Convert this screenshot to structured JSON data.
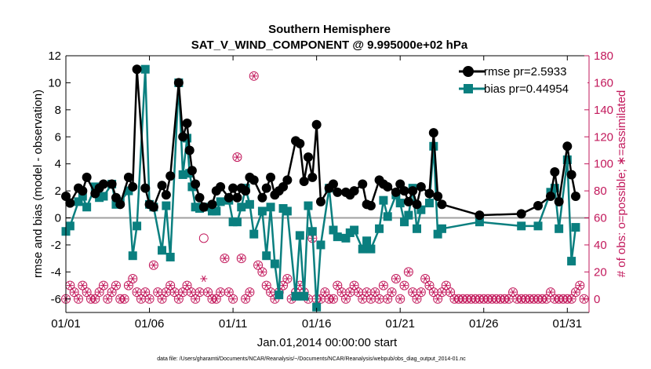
{
  "chart_data": {
    "type": "line",
    "title": "Southern Hemisphere",
    "subtitle": "SAT_V_WIND_COMPONENT @ 9.995000e+02 hPa",
    "xlabel": "Jan.01,2014 00:00:00 start",
    "ylabel": "rmse and bias (model - observation)",
    "y2label": "# of obs: o=possible; ∗=assimilated",
    "footnote": "data file: /Users/gharamti/Documents/NCAR/Reanalysis/~/Documents/NCAR/Reanalysis/webpub/obs_diag_output_2014-01.nc",
    "xlim": [
      1,
      32.3
    ],
    "ylim": [
      -7,
      12
    ],
    "y2lim": [
      -10,
      180
    ],
    "x_ticks": [
      1,
      6,
      11,
      16,
      21,
      26,
      31
    ],
    "x_tick_labels": [
      "01/01",
      "01/06",
      "01/11",
      "01/16",
      "01/21",
      "01/26",
      "01/31"
    ],
    "y_ticks": [
      -6,
      -4,
      -2,
      0,
      2,
      4,
      6,
      8,
      10,
      12
    ],
    "y2_ticks": [
      0,
      20,
      40,
      60,
      80,
      100,
      120,
      140,
      160,
      180
    ],
    "legend": {
      "location": "top-right",
      "entries": [
        "rmse pr=2.5933",
        "bias pr=0.44954"
      ]
    },
    "colors": {
      "rmse": "#000000",
      "bias": "#0a7f7f",
      "obs": "#c2185b",
      "zero_line": "#a0a0a0"
    },
    "series": [
      {
        "name": "rmse pr=2.5933",
        "x": [
          1.0,
          1.25,
          1.75,
          2.0,
          2.25,
          2.75,
          3.0,
          3.25,
          3.75,
          4.0,
          4.25,
          4.75,
          5.0,
          5.25,
          5.75,
          6.0,
          6.25,
          6.75,
          7.0,
          7.25,
          7.75,
          8.0,
          8.25,
          8.4,
          8.55,
          8.75,
          9.0,
          9.25,
          9.75,
          10.0,
          10.25,
          10.75,
          11.0,
          11.25,
          11.5,
          11.75,
          12.0,
          12.25,
          12.75,
          13.0,
          13.25,
          13.5,
          13.75,
          14.0,
          14.25,
          14.75,
          15.0,
          15.25,
          15.5,
          15.75,
          16.0,
          16.25,
          16.75,
          17.0,
          17.25,
          17.75,
          18.0,
          18.25,
          18.75,
          19.0,
          19.25,
          19.75,
          20.0,
          20.25,
          20.75,
          21.0,
          21.25,
          21.5,
          21.75,
          22.0,
          22.25,
          22.75,
          23.0,
          23.25,
          23.5,
          25.75,
          28.25,
          29.25,
          30.0,
          30.25,
          30.5,
          31.0,
          31.25,
          31.5
        ],
        "values": [
          1.6,
          1.1,
          2.2,
          2.0,
          3.0,
          1.8,
          2.2,
          2.5,
          2.5,
          1.5,
          1.0,
          3.0,
          2.3,
          11.0,
          2.2,
          1.0,
          0.8,
          2.4,
          1.7,
          3.1,
          10.0,
          6.0,
          7.0,
          5.0,
          3.5,
          2.5,
          1.5,
          0.8,
          1.0,
          2.0,
          2.3,
          1.5,
          2.2,
          1.5,
          2.2,
          2.0,
          3.0,
          2.8,
          1.5,
          2.2,
          3.0,
          1.7,
          2.0,
          2.3,
          2.8,
          5.7,
          5.5,
          2.7,
          4.5,
          3.0,
          6.9,
          1.2,
          2.2,
          2.5,
          1.9,
          1.9,
          1.7,
          2.0,
          2.5,
          1.0,
          0.9,
          2.8,
          2.5,
          2.3,
          1.9,
          2.5,
          2.0,
          1.2,
          2.0,
          1.0,
          2.3,
          1.8,
          6.3,
          1.6,
          1.0,
          0.2,
          0.3,
          0.9,
          1.6,
          3.4,
          1.2,
          5.3,
          3.2,
          1.6
        ],
        "marker": "circle"
      },
      {
        "name": "bias pr=0.44954",
        "x": [
          1.0,
          1.25,
          1.75,
          2.0,
          2.25,
          2.75,
          3.0,
          3.25,
          3.75,
          4.0,
          4.25,
          4.75,
          5.0,
          5.25,
          5.75,
          6.0,
          6.25,
          6.75,
          7.0,
          7.25,
          7.75,
          8.0,
          8.25,
          8.4,
          8.55,
          8.75,
          9.0,
          9.25,
          9.75,
          10.0,
          10.25,
          10.75,
          11.0,
          11.25,
          11.5,
          11.75,
          12.0,
          12.25,
          12.75,
          13.0,
          13.25,
          13.5,
          13.75,
          14.0,
          14.25,
          14.75,
          15.0,
          15.25,
          15.5,
          15.75,
          16.0,
          16.25,
          16.75,
          17.0,
          17.25,
          17.75,
          18.0,
          18.25,
          18.75,
          19.0,
          19.25,
          19.75,
          20.0,
          20.25,
          20.75,
          21.0,
          21.25,
          21.5,
          21.75,
          22.0,
          22.25,
          22.75,
          23.0,
          23.25,
          23.5,
          25.75,
          28.25,
          29.25,
          30.0,
          30.25,
          30.5,
          31.0,
          31.25,
          31.5
        ],
        "values": [
          -1.0,
          -0.6,
          1.2,
          1.6,
          0.8,
          2.3,
          1.5,
          1.6,
          2.5,
          1.0,
          1.2,
          2.0,
          -2.8,
          -0.6,
          11.0,
          1.0,
          0.8,
          -2.4,
          0.9,
          -2.9,
          10.0,
          3.2,
          5.9,
          3.3,
          2.3,
          0.8,
          0.7,
          0.8,
          0.5,
          0.5,
          1.2,
          1.3,
          -0.3,
          -0.3,
          0.8,
          2.2,
          1.0,
          -1.2,
          0.5,
          -2.8,
          0.8,
          -3.4,
          -5.7,
          0.7,
          0.5,
          -5.8,
          -1.3,
          -5.8,
          0.9,
          -1.0,
          -6.6,
          -2.0,
          2.2,
          -0.9,
          -1.4,
          -1.5,
          -1.1,
          -0.9,
          -2.3,
          -1.7,
          -2.3,
          -0.8,
          1.3,
          0.1,
          1.7,
          1.1,
          -0.3,
          0.2,
          2.2,
          -0.8,
          0.6,
          1.1,
          5.3,
          -1.2,
          -0.8,
          -0.3,
          -0.6,
          -0.6,
          1.9,
          2.2,
          -0.8,
          4.3,
          -3.2,
          -0.7
        ],
        "marker": "square"
      }
    ],
    "obs_counts": {
      "possible": {
        "x": [
          1.0,
          1.25,
          1.5,
          1.75,
          2.0,
          2.25,
          2.5,
          2.75,
          3.0,
          3.25,
          3.5,
          3.75,
          4.0,
          4.25,
          4.5,
          4.75,
          5.0,
          5.25,
          5.5,
          5.75,
          6.0,
          6.25,
          6.5,
          6.75,
          7.0,
          7.25,
          7.5,
          7.75,
          8.0,
          8.25,
          8.5,
          8.75,
          9.0,
          9.25,
          9.5,
          9.75,
          10.0,
          10.25,
          10.5,
          10.75,
          11.0,
          11.25,
          11.5,
          11.75,
          12.0,
          12.25,
          12.5,
          12.75,
          13.0,
          13.25,
          13.5,
          13.75,
          14.0,
          14.25,
          14.5,
          14.75,
          15.0,
          15.25,
          15.5,
          15.75,
          16.0,
          16.25,
          16.5,
          16.75,
          17.0,
          17.25,
          17.5,
          17.75,
          18.0,
          18.25,
          18.5,
          18.75,
          19.0,
          19.25,
          19.5,
          19.75,
          20.0,
          20.25,
          20.5,
          20.75,
          21.0,
          21.25,
          21.5,
          21.75,
          22.0,
          22.25,
          22.5,
          22.75,
          23.0,
          23.25,
          23.5,
          23.75,
          24.0,
          24.25,
          24.5,
          24.75,
          25.0,
          25.25,
          25.5,
          25.75,
          26.0,
          26.25,
          26.5,
          26.75,
          27.0,
          27.25,
          27.5,
          27.75,
          28.0,
          28.25,
          28.5,
          28.75,
          29.0,
          29.25,
          29.5,
          29.75,
          30.0,
          30.25,
          30.5,
          30.75,
          31.0,
          31.25,
          31.5,
          31.75,
          32.0
        ],
        "values": [
          0,
          10,
          5,
          0,
          10,
          5,
          0,
          0,
          5,
          10,
          0,
          5,
          10,
          0,
          0,
          10,
          15,
          5,
          0,
          5,
          0,
          25,
          5,
          0,
          5,
          10,
          5,
          0,
          5,
          10,
          5,
          0,
          5,
          45,
          5,
          0,
          0,
          5,
          30,
          5,
          0,
          105,
          30,
          0,
          5,
          165,
          25,
          20,
          10,
          5,
          0,
          5,
          10,
          15,
          0,
          5,
          10,
          5,
          0,
          45,
          0,
          0,
          5,
          0,
          0,
          10,
          5,
          0,
          5,
          10,
          5,
          0,
          5,
          0,
          5,
          0,
          10,
          0,
          5,
          15,
          0,
          10,
          20,
          5,
          0,
          5,
          15,
          10,
          5,
          0,
          5,
          10,
          5,
          0,
          0,
          0,
          0,
          0,
          0,
          0,
          0,
          0,
          0,
          0,
          0,
          0,
          0,
          5,
          0,
          0,
          0,
          0,
          0,
          0,
          0,
          0,
          5,
          0,
          0,
          0,
          0,
          0,
          5,
          10,
          0
        ],
        "marker": "circle"
      },
      "assimilated": {
        "x": [
          1.0,
          1.25,
          1.5,
          1.75,
          2.0,
          2.25,
          2.5,
          2.75,
          3.0,
          3.25,
          3.5,
          3.75,
          4.0,
          4.25,
          4.5,
          4.75,
          5.0,
          5.25,
          5.5,
          5.75,
          6.0,
          6.25,
          6.5,
          6.75,
          7.0,
          7.25,
          7.5,
          7.75,
          8.0,
          8.25,
          8.5,
          8.75,
          9.0,
          9.25,
          9.5,
          9.75,
          10.0,
          10.25,
          10.5,
          10.75,
          11.0,
          11.25,
          11.5,
          11.75,
          12.0,
          12.25,
          12.5,
          12.75,
          13.0,
          13.25,
          13.5,
          13.75,
          14.0,
          14.25,
          14.5,
          14.75,
          15.0,
          15.25,
          15.5,
          15.75,
          16.0,
          16.25,
          16.5,
          16.75,
          17.0,
          17.25,
          17.5,
          17.75,
          18.0,
          18.25,
          18.5,
          18.75,
          19.0,
          19.25,
          19.5,
          19.75,
          20.0,
          20.25,
          20.5,
          20.75,
          21.0,
          21.25,
          21.5,
          21.75,
          22.0,
          22.25,
          22.5,
          22.75,
          23.0,
          23.25,
          23.5,
          23.75,
          24.0,
          24.25,
          24.5,
          24.75,
          25.0,
          25.25,
          25.5,
          25.75,
          26.0,
          26.25,
          26.5,
          26.75,
          27.0,
          27.25,
          27.5,
          27.75,
          28.0,
          28.25,
          28.5,
          28.75,
          29.0,
          29.25,
          29.5,
          29.75,
          30.0,
          30.25,
          30.5,
          30.75,
          31.0,
          31.25,
          31.5,
          31.75,
          32.0
        ],
        "values": [
          0,
          10,
          5,
          0,
          10,
          5,
          0,
          0,
          5,
          10,
          0,
          5,
          10,
          0,
          0,
          10,
          15,
          5,
          0,
          5,
          0,
          25,
          5,
          0,
          5,
          10,
          5,
          0,
          5,
          10,
          5,
          0,
          5,
          15,
          5,
          0,
          0,
          5,
          30,
          5,
          0,
          105,
          30,
          0,
          5,
          165,
          25,
          20,
          10,
          5,
          0,
          5,
          10,
          15,
          0,
          5,
          10,
          5,
          0,
          45,
          0,
          0,
          5,
          0,
          0,
          10,
          5,
          0,
          5,
          10,
          5,
          0,
          5,
          0,
          5,
          0,
          10,
          0,
          5,
          15,
          0,
          10,
          20,
          5,
          0,
          5,
          15,
          10,
          5,
          0,
          5,
          10,
          5,
          0,
          0,
          0,
          0,
          0,
          0,
          0,
          0,
          0,
          0,
          0,
          0,
          0,
          0,
          5,
          0,
          0,
          0,
          0,
          0,
          0,
          0,
          0,
          5,
          0,
          0,
          0,
          0,
          0,
          5,
          10,
          0
        ],
        "marker": "asterisk"
      }
    }
  }
}
